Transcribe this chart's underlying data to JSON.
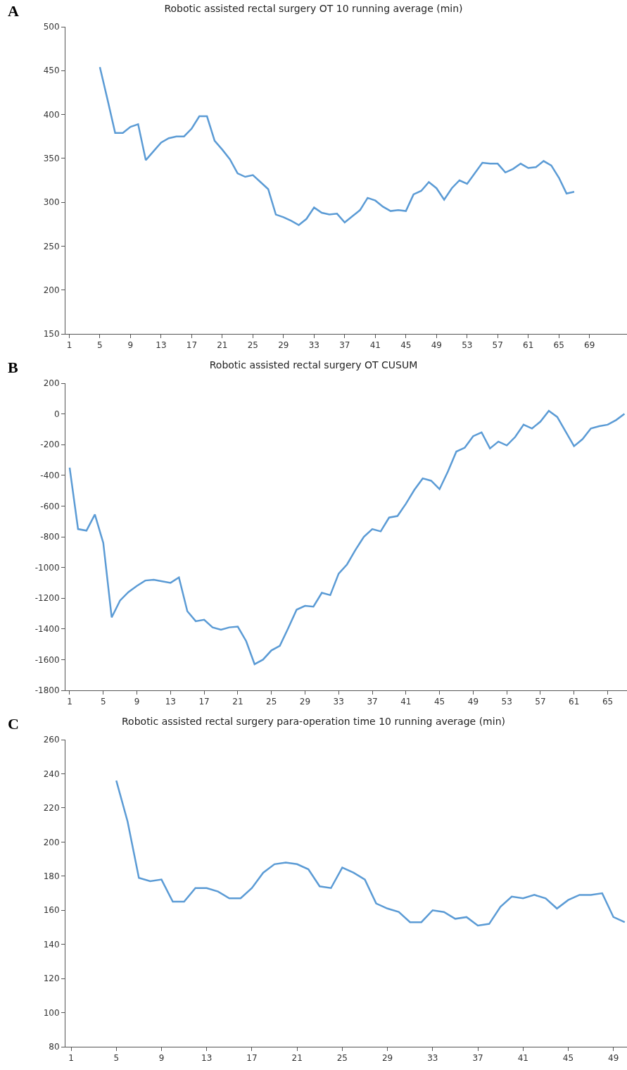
{
  "chart_data": [
    {
      "type": "line",
      "title": "Robotic assisted rectal surgery OT 10 running average (min)",
      "annotations": [
        "A"
      ],
      "color": "#5b9bd5",
      "x": [
        5,
        6,
        7,
        8,
        9,
        10,
        11,
        12,
        13,
        14,
        15,
        16,
        17,
        18,
        19,
        20,
        21,
        22,
        23,
        24,
        25,
        26,
        27,
        28,
        29,
        30,
        31,
        32,
        33,
        34,
        35,
        36,
        37,
        38,
        39,
        40,
        41,
        42,
        43,
        44,
        45,
        46,
        47,
        48,
        49,
        50,
        51,
        52,
        53,
        54,
        55,
        56,
        57,
        58,
        59,
        60,
        61,
        62,
        63,
        64,
        65,
        66,
        67
      ],
      "values": [
        454,
        417,
        379,
        379,
        386,
        389,
        348,
        358,
        368,
        373,
        375,
        375,
        384,
        398,
        398,
        370,
        360,
        349,
        333,
        329,
        331,
        323,
        315,
        286,
        283,
        279,
        274,
        281,
        294,
        288,
        286,
        287,
        277,
        284,
        291,
        305,
        302,
        295,
        290,
        291,
        290,
        309,
        313,
        323,
        316,
        303,
        316,
        325,
        321,
        333,
        345,
        344,
        344,
        334,
        338,
        344,
        339,
        340,
        347,
        342,
        328,
        310,
        312
      ],
      "xlim": [
        0.5,
        73.9
      ],
      "xticks": [
        1,
        5,
        9,
        13,
        17,
        21,
        25,
        29,
        33,
        37,
        41,
        45,
        49,
        53,
        57,
        61,
        65,
        69
      ],
      "ylim": [
        150,
        500
      ],
      "yticks": [
        150,
        200,
        250,
        300,
        350,
        400,
        450,
        500
      ]
    },
    {
      "type": "line",
      "title": "Robotic assisted rectal surgery OT CUSUM",
      "annotations": [
        "B"
      ],
      "color": "#5b9bd5",
      "x": [
        1,
        2,
        3,
        4,
        5,
        6,
        7,
        8,
        9,
        10,
        11,
        12,
        13,
        14,
        15,
        16,
        17,
        18,
        19,
        20,
        21,
        22,
        23,
        24,
        25,
        26,
        27,
        28,
        29,
        30,
        31,
        32,
        33,
        34,
        35,
        36,
        37,
        38,
        39,
        40,
        41,
        42,
        43,
        44,
        45,
        46,
        47,
        48,
        49,
        50,
        51,
        52,
        53,
        54,
        55,
        56,
        57,
        58,
        59,
        60,
        61,
        62,
        63,
        64,
        65,
        66,
        67
      ],
      "values": [
        -350,
        -750,
        -760,
        -655,
        -840,
        -1325,
        -1215,
        -1160,
        -1120,
        -1085,
        -1080,
        -1090,
        -1100,
        -1065,
        -1285,
        -1350,
        -1340,
        -1390,
        -1405,
        -1390,
        -1385,
        -1480,
        -1630,
        -1600,
        -1540,
        -1510,
        -1395,
        -1275,
        -1250,
        -1255,
        -1165,
        -1180,
        -1040,
        -980,
        -885,
        -800,
        -750,
        -765,
        -675,
        -665,
        -585,
        -495,
        -420,
        -435,
        -490,
        -375,
        -245,
        -220,
        -145,
        -120,
        -225,
        -180,
        -205,
        -150,
        -70,
        -95,
        -50,
        20,
        -20,
        -115,
        -210,
        -165,
        -95,
        -80,
        -70,
        -40,
        0
      ],
      "xlim": [
        0.5,
        67.3
      ],
      "xticks": [
        1,
        5,
        9,
        13,
        17,
        21,
        25,
        29,
        33,
        37,
        41,
        45,
        49,
        53,
        57,
        61,
        65
      ],
      "ylim": [
        -1800,
        200
      ],
      "yticks": [
        -1800,
        -1600,
        -1400,
        -1200,
        -1000,
        -800,
        -600,
        -400,
        -200,
        0,
        200
      ]
    },
    {
      "type": "line",
      "title": "Robotic assisted rectal surgery para-operation time 10 running average (min)",
      "annotations": [
        "C"
      ],
      "color": "#5b9bd5",
      "x": [
        5,
        6,
        7,
        8,
        9,
        10,
        11,
        12,
        13,
        14,
        15,
        16,
        17,
        18,
        19,
        20,
        21,
        22,
        23,
        24,
        25,
        26,
        27,
        28,
        29,
        30,
        31,
        32,
        33,
        34,
        35,
        36,
        37,
        38,
        39,
        40,
        41,
        42,
        43,
        44,
        45,
        46,
        47,
        48,
        49,
        50
      ],
      "values": [
        236,
        212,
        179,
        177,
        178,
        165,
        165,
        173,
        173,
        171,
        167,
        167,
        173,
        182,
        187,
        188,
        187,
        184,
        174,
        173,
        185,
        182,
        178,
        164,
        161,
        159,
        153,
        153,
        160,
        159,
        155,
        156,
        151,
        152,
        162,
        168,
        167,
        169,
        167,
        161,
        166,
        169,
        169,
        170,
        156,
        153
      ],
      "xlim": [
        0.5,
        50.2
      ],
      "xticks": [
        1,
        5,
        9,
        13,
        17,
        21,
        25,
        29,
        33,
        37,
        41,
        45,
        49
      ],
      "ylim": [
        80,
        260
      ],
      "yticks": [
        80,
        100,
        120,
        140,
        160,
        180,
        200,
        220,
        240,
        260
      ]
    }
  ]
}
